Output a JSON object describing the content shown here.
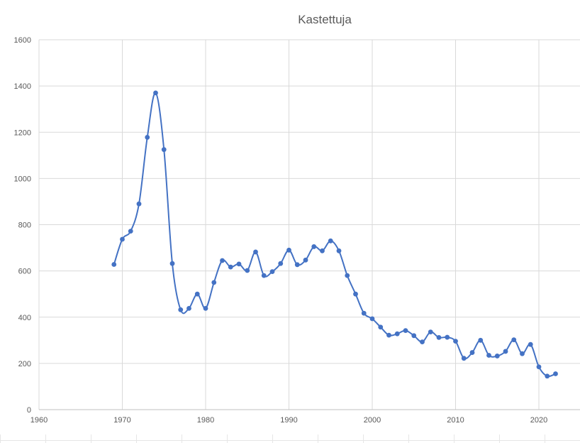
{
  "window": {
    "title": "Kastettuja"
  },
  "chart_data": {
    "type": "line",
    "title": "Kastettuja",
    "xlabel": "",
    "ylabel": "",
    "xlim": [
      1960,
      2025
    ],
    "ylim": [
      0,
      1600
    ],
    "x_ticks": [
      1960,
      1970,
      1980,
      1990,
      2000,
      2010,
      2020
    ],
    "y_ticks": [
      0,
      200,
      400,
      600,
      800,
      1000,
      1200,
      1400,
      1600
    ],
    "grid": true,
    "legend": "none",
    "smooth": true,
    "series": [
      {
        "color": "#4472c4",
        "x": [
          1969,
          1970,
          1971,
          1972,
          1973,
          1974,
          1975,
          1976,
          1977,
          1978,
          1979,
          1980,
          1981,
          1982,
          1983,
          1984,
          1985,
          1986,
          1987,
          1988,
          1989,
          1990,
          1991,
          1992,
          1993,
          1994,
          1995,
          1996,
          1997,
          1998,
          1999,
          2000,
          2001,
          2002,
          2003,
          2004,
          2005,
          2006,
          2007,
          2008,
          2009,
          2010,
          2011,
          2012,
          2013,
          2014,
          2015,
          2016,
          2017,
          2018,
          2019,
          2020,
          2021,
          2022
        ],
        "y": [
          628,
          737,
          772,
          890,
          1178,
          1370,
          1125,
          632,
          432,
          438,
          500,
          438,
          550,
          645,
          617,
          630,
          602,
          682,
          580,
          597,
          632,
          690,
          627,
          647,
          705,
          687,
          730,
          687,
          580,
          500,
          417,
          393,
          357,
          322,
          328,
          342,
          320,
          293,
          336,
          312,
          313,
          296,
          222,
          247,
          300,
          235,
          232,
          252,
          302,
          242,
          282,
          185,
          145,
          155
        ]
      }
    ]
  }
}
